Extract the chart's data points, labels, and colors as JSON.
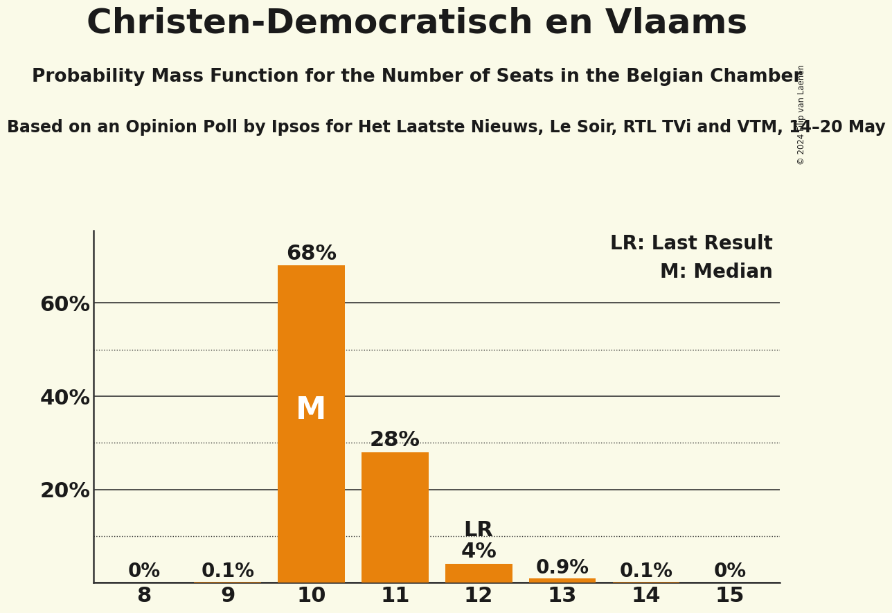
{
  "title": "Christen-Democratisch en Vlaams",
  "subtitle": "Probability Mass Function for the Number of Seats in the Belgian Chamber",
  "sub_subtitle": "Based on an Opinion Poll by Ipsos for Het Laatste Nieuws, Le Soir, RTL TVi and VTM, 14–20 May",
  "copyright": "© 2024 Filip van Laenen",
  "seats": [
    8,
    9,
    10,
    11,
    12,
    13,
    14,
    15
  ],
  "probabilities": [
    0.0,
    0.001,
    0.68,
    0.28,
    0.04,
    0.009,
    0.001,
    0.0
  ],
  "bar_labels": [
    "0%",
    "0.1%",
    "68%",
    "28%",
    "4%",
    "0.9%",
    "0.1%",
    "0%"
  ],
  "bar_color": "#E8820C",
  "background_color": "#FAFAE8",
  "median_seat": 10,
  "last_result_seat": 12,
  "ylim": [
    0,
    0.755
  ],
  "yticks": [
    0.2,
    0.4,
    0.6
  ],
  "ytick_labels": [
    "20%",
    "40%",
    "60%"
  ],
  "dotted_lines": [
    0.1,
    0.3,
    0.5
  ],
  "solid_lines": [
    0.0,
    0.2,
    0.4,
    0.6
  ],
  "legend_lr": "LR: Last Result",
  "legend_m": "M: Median",
  "text_color": "#1a1a1a"
}
